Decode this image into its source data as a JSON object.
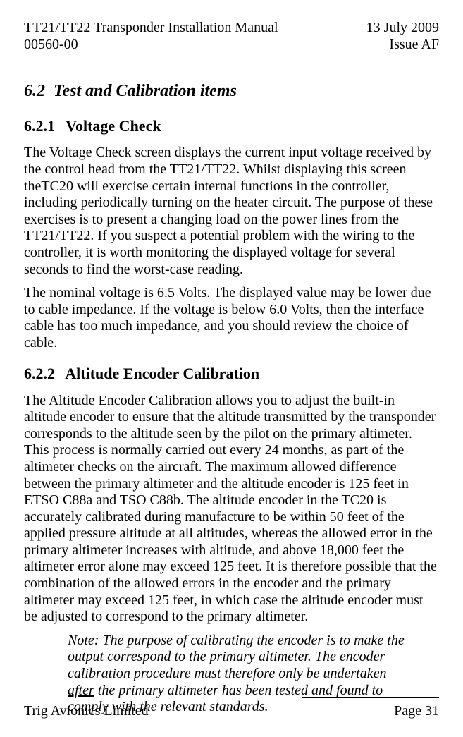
{
  "header": {
    "left_line1": "TT21/TT22 Transponder Installation Manual",
    "left_line2": "00560-00",
    "right_line1": "13 July 2009",
    "right_line2": "Issue AF"
  },
  "section": {
    "number": "6.2",
    "title": "Test and Calibration items"
  },
  "sub1": {
    "number": "6.2.1",
    "title": "Voltage Check",
    "p1": "The Voltage Check screen displays the current input voltage received by the control head from the TT21/TT22.  Whilst displaying this screen theTC20 will exercise certain internal functions in the controller, including periodically turning on the heater circuit.  The purpose of these exercises is to present a changing load on the power lines from the TT21/TT22.  If you suspect a potential problem with the wiring to the controller, it is worth monitoring the displayed voltage for several seconds to find the worst-case reading.",
    "p2": "The nominal voltage is 6.5 Volts.  The displayed value may be lower due to cable impedance.  If the voltage is below 6.0 Volts, then the interface cable has too much impedance, and you should review the choice of cable."
  },
  "sub2": {
    "number": "6.2.2",
    "title": "Altitude Encoder Calibration",
    "p1": "The Altitude Encoder Calibration allows you to adjust the built-in altitude encoder to ensure that the altitude transmitted by the transponder corresponds to the altitude seen by the pilot on the primary altimeter.  This process is normally carried out every 24 months, as part of the altimeter checks on the aircraft.  The maximum allowed difference between the primary altimeter and the altitude encoder is 125 feet in ETSO C88a and TSO C88b.  The altitude encoder in the TC20 is accurately calibrated during manufacture to be within 50 feet of the applied pressure altitude at all altitudes, whereas the allowed error in the primary altimeter increases with altitude, and above 18,000 feet the altimeter error alone may exceed 125 feet.  It is therefore possible that the combination of the allowed errors in the encoder and the primary altimeter may exceed 125 feet, in which case the altitude encoder must be adjusted to correspond to the primary altimeter.",
    "note_pre": "Note:  The purpose of calibrating the encoder is to make the output correspond to the primary altimeter.  The encoder calibration procedure must therefore only be undertaken ",
    "note_under": "after",
    "note_post": " the primary altimeter has been tested and found to comply with the relevant standards."
  },
  "footer": {
    "left": "Trig Avionics Limited",
    "right": "Page 31"
  }
}
